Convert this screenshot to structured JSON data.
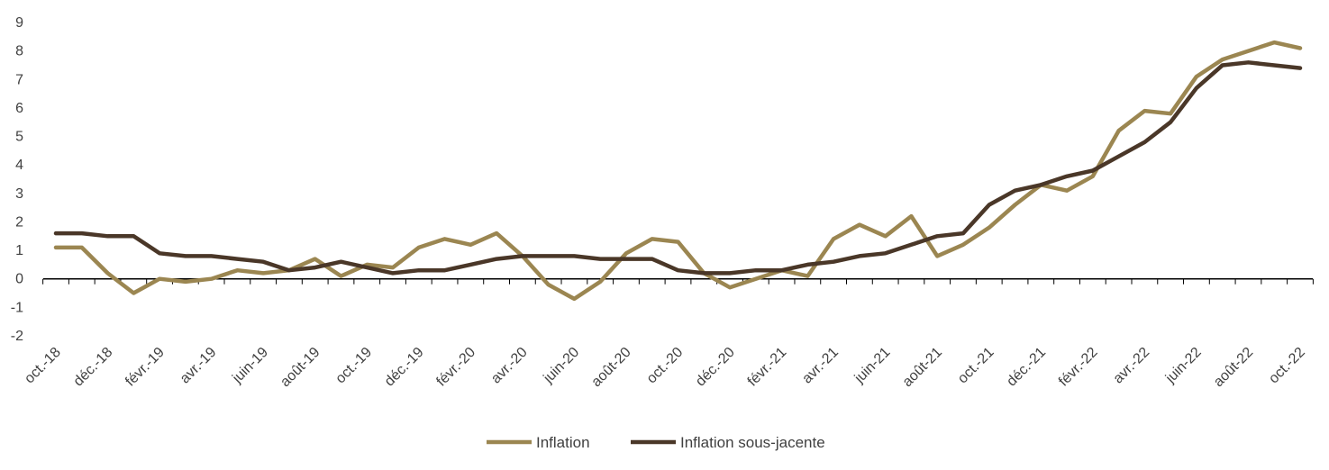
{
  "chart_data": {
    "type": "line",
    "title": "",
    "xlabel": "",
    "ylabel": "",
    "ylim": [
      -2,
      9
    ],
    "yticks": [
      -2,
      -1,
      0,
      1,
      2,
      3,
      4,
      5,
      6,
      7,
      8,
      9
    ],
    "grid": false,
    "legend_position": "bottom",
    "x": [
      "oct.-18",
      "nov.-18",
      "déc.-18",
      "janv.-19",
      "févr.-19",
      "mars-19",
      "avr.-19",
      "mai-19",
      "juin-19",
      "juil.-19",
      "août-19",
      "sept.-19",
      "oct.-19",
      "nov.-19",
      "déc.-19",
      "janv.-20",
      "févr.-20",
      "mars-20",
      "avr.-20",
      "mai-20",
      "juin-20",
      "juil.-20",
      "août-20",
      "sept.-20",
      "oct.-20",
      "nov.-20",
      "déc.-20",
      "janv.-21",
      "févr.-21",
      "mars-21",
      "avr.-21",
      "mai-21",
      "juin-21",
      "juil.-21",
      "août-21",
      "sept.-21",
      "oct.-21",
      "nov.-21",
      "déc.-21",
      "janv.-22",
      "févr.-22",
      "mars-22",
      "avr.-22",
      "mai-22",
      "juin-22",
      "juil.-22",
      "août-22",
      "sept.-22",
      "oct.-22"
    ],
    "x_tick_labels": [
      "oct.-18",
      "déc.-18",
      "févr.-19",
      "avr.-19",
      "juin-19",
      "août-19",
      "oct.-19",
      "déc.-19",
      "févr.-20",
      "avr.-20",
      "juin-20",
      "août-20",
      "oct.-20",
      "déc.-20",
      "févr.-21",
      "avr.-21",
      "juin-21",
      "août-21",
      "oct.-21",
      "déc.-21",
      "févr.-22",
      "avr.-22",
      "juin-22",
      "août-22",
      "oct.-22"
    ],
    "series": [
      {
        "name": "Inflation",
        "color": "#9b8651",
        "values": [
          1.1,
          1.1,
          0.2,
          -0.5,
          0.0,
          -0.1,
          0.0,
          0.3,
          0.2,
          0.3,
          0.7,
          0.1,
          0.5,
          0.4,
          1.1,
          1.4,
          1.2,
          1.6,
          0.8,
          -0.2,
          -0.7,
          -0.1,
          0.9,
          1.4,
          1.3,
          0.2,
          -0.3,
          0.0,
          0.3,
          0.1,
          1.4,
          1.9,
          1.5,
          2.2,
          0.8,
          1.2,
          1.8,
          2.6,
          3.3,
          3.1,
          3.6,
          5.2,
          5.9,
          5.8,
          7.1,
          7.7,
          8.0,
          8.3,
          8.1
        ]
      },
      {
        "name": "Inflation sous-jacente",
        "color": "#4a3728",
        "values": [
          1.6,
          1.6,
          1.5,
          1.5,
          0.9,
          0.8,
          0.8,
          0.7,
          0.6,
          0.3,
          0.4,
          0.6,
          0.4,
          0.2,
          0.3,
          0.3,
          0.5,
          0.7,
          0.8,
          0.8,
          0.8,
          0.7,
          0.7,
          0.7,
          0.3,
          0.2,
          0.2,
          0.3,
          0.3,
          0.5,
          0.6,
          0.8,
          0.9,
          1.2,
          1.5,
          1.6,
          2.6,
          3.1,
          3.3,
          3.6,
          3.8,
          4.3,
          4.8,
          5.5,
          6.7,
          7.5,
          7.6,
          7.5,
          7.4
        ]
      }
    ]
  }
}
